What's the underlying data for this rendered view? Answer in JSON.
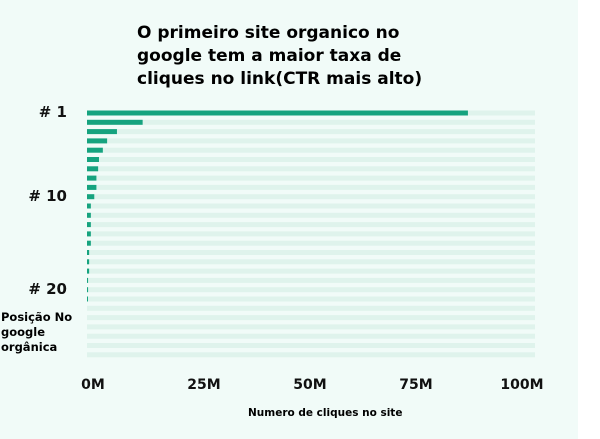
{
  "chart_data": {
    "type": "bar",
    "orientation": "horizontal",
    "title": "O primeiro site organico no google tem a maior taxa de cliques no link(CTR mais alto)",
    "xlabel": "Numero de cliques no site",
    "ylabel": "Posição No google orgânica",
    "xlim": [
      0,
      100
    ],
    "x_unit": "M",
    "x_ticks": [
      "0M",
      "25M",
      "50M",
      "75M",
      "100M"
    ],
    "y_tick_labels": [
      {
        "position": 1,
        "label": "# 1"
      },
      {
        "position": 10,
        "label": "# 10"
      },
      {
        "position": 20,
        "label": "# 20"
      }
    ],
    "positions": [
      1,
      2,
      3,
      4,
      5,
      6,
      7,
      8,
      9,
      10,
      11,
      12,
      13,
      14,
      15,
      16,
      17,
      18,
      19,
      20,
      21,
      22,
      23,
      24,
      25,
      26,
      27
    ],
    "values": [
      89,
      13,
      7,
      4.7,
      3.7,
      2.8,
      2.6,
      2.2,
      2.2,
      1.7,
      0.9,
      0.9,
      0.9,
      0.9,
      0.9,
      0.5,
      0.5,
      0.5,
      0.25,
      0.25,
      0.2,
      0,
      0,
      0,
      0,
      0,
      0
    ],
    "bar_color": "#16a37f",
    "track_color": "#dff3ec"
  }
}
